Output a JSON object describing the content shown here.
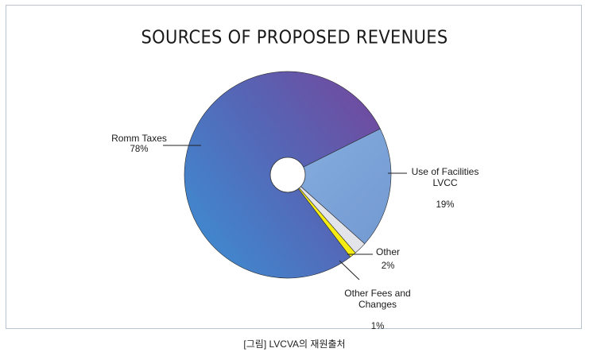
{
  "chart_data": {
    "type": "pie",
    "title": "SOURCES OF PROPOSED REVENUES",
    "slices": [
      {
        "label": "Romm Taxes",
        "value": 78,
        "value_label": "78%",
        "color": "#4a6fc0"
      },
      {
        "label": "Use of Facilities\nLVCC",
        "value": 19,
        "value_label": "19%",
        "color": "#7ea6dc"
      },
      {
        "label": "Other",
        "value": 2,
        "value_label": "2%",
        "color": "#e3e3ea"
      },
      {
        "label": "Other Fees and\nChanges",
        "value": 1,
        "value_label": "1%",
        "color": "#f4ec12"
      }
    ],
    "legend": "none",
    "donut_hole": true
  },
  "caption": "[그림] LVCVA의 재원출처"
}
